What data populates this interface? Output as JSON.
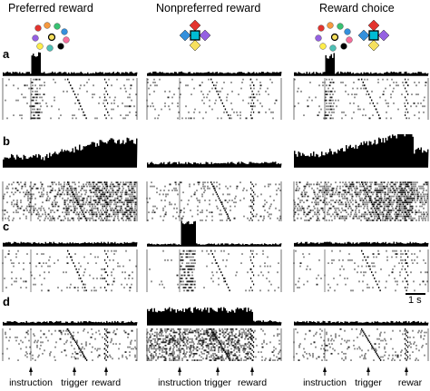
{
  "columns": [
    {
      "title": "Preferred reward",
      "stimulus": "preferred-reward-dots-icon"
    },
    {
      "title": "Nonpreferred reward",
      "stimulus": "nonpreferred-reward-diamonds-icon"
    },
    {
      "title": "Reward choice",
      "stimulus": "reward-choice-dots-and-diamonds-icon"
    }
  ],
  "rows": [
    {
      "label": "a",
      "profiles": [
        "preferred-burst-at-instruction",
        "flat",
        "burst-at-instruction"
      ]
    },
    {
      "label": "b",
      "profiles": [
        "ramp-to-reward",
        "flat",
        "ramp-to-reward-strong"
      ]
    },
    {
      "label": "c",
      "profiles": [
        "flat",
        "burst-at-instruction-strong",
        "flat"
      ]
    },
    {
      "label": "d",
      "profiles": [
        "flat",
        "elevated-until-reward",
        "flat"
      ]
    }
  ],
  "scale_bar": {
    "label": "1 s"
  },
  "event_labels": [
    {
      "columns": [
        0,
        1
      ],
      "labels": [
        "instruction",
        "trigger",
        "reward"
      ]
    },
    {
      "columns": [
        2
      ],
      "labels": [
        "instruction",
        "trigger",
        "rewar"
      ]
    }
  ],
  "colors": {
    "ink": "#000000",
    "raster": "#111111"
  },
  "stimulus_colors": {
    "dots": [
      "#e3342f",
      "#f6993f",
      "#38c172",
      "#3490dc",
      "#9561e2",
      "#f66d9b",
      "#ffed4a",
      "#4dc0b5",
      "#000000"
    ],
    "diamonds": [
      "#e3342f",
      "#3490dc",
      "#9561e2",
      "#f6e05e",
      "#38c172",
      "#00bcd4"
    ]
  }
}
